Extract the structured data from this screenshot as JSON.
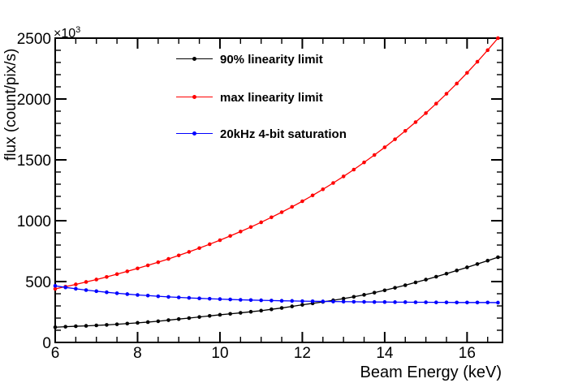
{
  "figure": {
    "y_axis_title": "flux (count/pix/s)",
    "x_axis_title": "Beam Energy (keV)",
    "y_exponent_base": "×10",
    "y_exponent_power": "3",
    "background_color": "#ffffff",
    "frame_color": "#000000"
  },
  "chart_data": {
    "type": "line",
    "title": "",
    "xlabel": "Beam Energy (keV)",
    "ylabel": "flux (count/pix/s)",
    "y_unit_note": "values in ×10³ count/pix/s",
    "xlim": [
      6,
      16.86
    ],
    "ylim": [
      0,
      2500
    ],
    "x_major_ticks": [
      6,
      8,
      10,
      12,
      14,
      16
    ],
    "x_minor_step": 0.5,
    "y_major_ticks": [
      0,
      500,
      1000,
      1500,
      2000,
      2500
    ],
    "y_minor_step": 100,
    "grid": false,
    "legend_position": "top-left-inside",
    "marker_style": "filled-circle",
    "x": [
      6.0,
      6.25,
      6.5,
      6.75,
      7.0,
      7.25,
      7.5,
      7.75,
      8.0,
      8.25,
      8.5,
      8.75,
      9.0,
      9.25,
      9.5,
      9.75,
      10.0,
      10.25,
      10.5,
      10.75,
      11.0,
      11.25,
      11.5,
      11.75,
      12.0,
      12.25,
      12.5,
      12.75,
      13.0,
      13.25,
      13.5,
      13.75,
      14.0,
      14.25,
      14.5,
      14.75,
      15.0,
      15.25,
      15.5,
      15.75,
      16.0,
      16.25,
      16.5,
      16.75
    ],
    "series": [
      {
        "name": "90% linearity limit",
        "color": "#000000",
        "values": [
          125,
          129,
          133,
          136,
          140,
          144,
          149,
          155,
          161,
          167,
          174,
          183,
          192,
          200,
          209,
          218,
          227,
          235,
          243,
          252,
          261,
          272,
          283,
          296,
          309,
          321,
          333,
          346,
          360,
          375,
          391,
          409,
          428,
          449,
          470,
          493,
          516,
          540,
          565,
          591,
          617,
          644,
          672,
          700
        ]
      },
      {
        "name": "max linearity limit",
        "color": "#ff0000",
        "values": [
          440,
          458,
          477,
          497,
          517,
          538,
          561,
          584,
          608,
          633,
          659,
          686,
          715,
          744,
          775,
          807,
          840,
          875,
          911,
          948,
          987,
          1028,
          1070,
          1114,
          1160,
          1208,
          1258,
          1310,
          1364,
          1420,
          1479,
          1540,
          1603,
          1669,
          1738,
          1810,
          1884,
          1962,
          2043,
          2127,
          2215,
          2306,
          2401,
          2500
        ]
      },
      {
        "name": "20kHz 4-bit saturation",
        "color": "#0000ff",
        "values": [
          465,
          452,
          441,
          430,
          421,
          412,
          404,
          397,
          390,
          385,
          379,
          374,
          370,
          366,
          362,
          359,
          356,
          353,
          350,
          348,
          346,
          344,
          342,
          341,
          339,
          338,
          337,
          336,
          335,
          334,
          333,
          332,
          332,
          331,
          331,
          330,
          330,
          329,
          329,
          328,
          328,
          328,
          328,
          327
        ]
      }
    ]
  }
}
